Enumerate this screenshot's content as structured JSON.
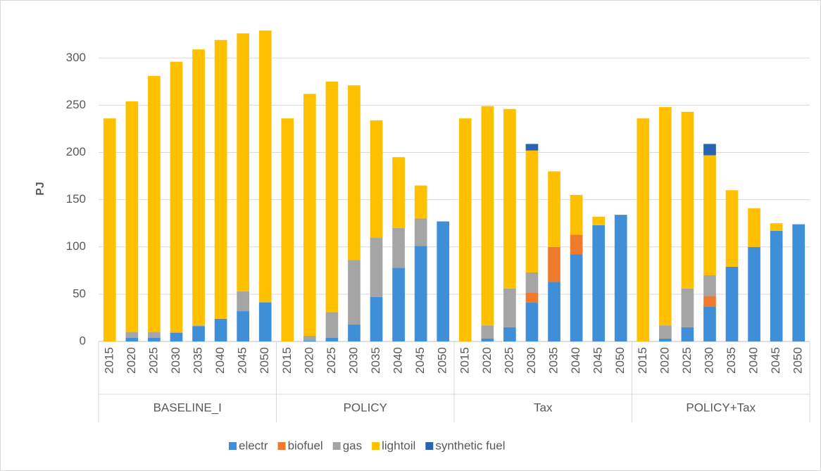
{
  "chart_data": {
    "type": "stacked_bar",
    "y_label": "PJ",
    "groups": [
      "BASELINE_I",
      "POLICY",
      "Tax",
      "POLICY+Tax"
    ],
    "categories": [
      "2015",
      "2020",
      "2025",
      "2030",
      "2035",
      "2040",
      "2045",
      "2050",
      "2015",
      "2020",
      "2025",
      "2030",
      "2035",
      "2040",
      "2045",
      "2050",
      "2015",
      "2020",
      "2025",
      "2030",
      "2035",
      "2040",
      "2045",
      "2050",
      "2015",
      "2020",
      "2025",
      "2030",
      "2035",
      "2040",
      "2045",
      "2050"
    ],
    "series": [
      {
        "name": "electr",
        "color": "#3f8fd8",
        "values": [
          0,
          4,
          4,
          9,
          16,
          24,
          32,
          41,
          0,
          1,
          4,
          18,
          47,
          78,
          101,
          127,
          0,
          3,
          15,
          41,
          63,
          92,
          123,
          134,
          0,
          3,
          15,
          37,
          79,
          100,
          117,
          124
        ]
      },
      {
        "name": "biofuel",
        "color": "#f07a2c",
        "values": [
          0,
          0,
          0,
          0,
          0,
          0,
          0,
          0,
          0,
          0,
          0,
          0,
          0,
          0,
          0,
          0,
          0,
          0,
          0,
          11,
          37,
          21,
          0,
          0,
          0,
          0,
          0,
          11,
          0,
          0,
          0,
          0
        ]
      },
      {
        "name": "gas",
        "color": "#a5a5a5",
        "values": [
          0,
          6,
          6,
          1,
          1,
          0,
          21,
          1,
          0,
          5,
          27,
          68,
          63,
          42,
          29,
          0,
          0,
          14,
          41,
          21,
          0,
          0,
          0,
          0,
          0,
          14,
          41,
          22,
          0,
          0,
          0,
          0
        ]
      },
      {
        "name": "lightoil",
        "color": "#ffc000",
        "values": [
          236,
          244,
          271,
          286,
          292,
          295,
          273,
          287,
          236,
          256,
          244,
          185,
          124,
          75,
          35,
          0,
          236,
          232,
          190,
          129,
          80,
          42,
          9,
          0,
          236,
          231,
          187,
          127,
          81,
          41,
          8,
          0
        ]
      },
      {
        "name": "synthetic fuel",
        "color": "#2a62b4",
        "values": [
          0,
          0,
          0,
          0,
          0,
          0,
          0,
          0,
          0,
          0,
          0,
          0,
          0,
          0,
          0,
          0,
          0,
          0,
          0,
          7,
          0,
          0,
          0,
          0,
          0,
          0,
          0,
          12,
          0,
          0,
          0,
          0
        ]
      }
    ],
    "ylim": [
      0,
      330
    ],
    "yticks": [
      0,
      50,
      100,
      150,
      200,
      250,
      300
    ],
    "grid": true
  }
}
